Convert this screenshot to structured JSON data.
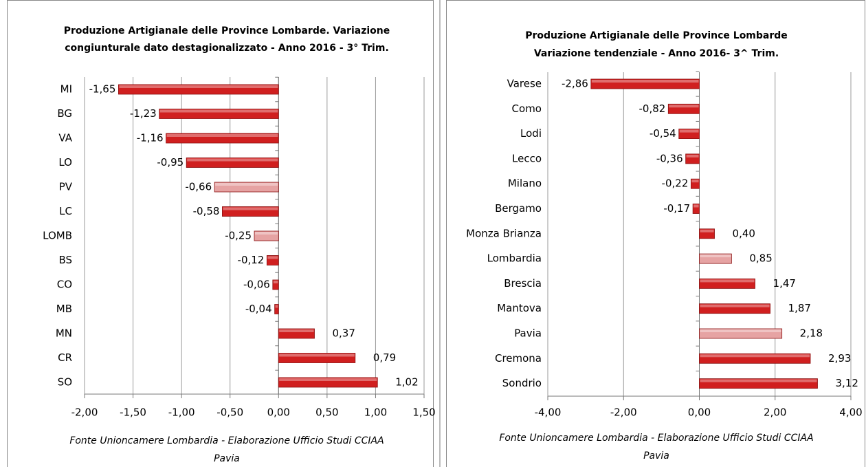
{
  "chart_data": [
    {
      "type": "bar",
      "orientation": "horizontal",
      "title": [
        "Produzione Artigianale delle Province Lombarde. Variazione",
        "congiunturale dato destagionalizzato - Anno 2016 - 3° Trim."
      ],
      "categories": [
        "MI",
        "BG",
        "VA",
        "LO",
        "PV",
        "LC",
        "LOMB",
        "BS",
        "CO",
        "MB",
        "MN",
        "CR",
        "SO"
      ],
      "values": [
        -1.65,
        -1.23,
        -1.16,
        -0.95,
        -0.66,
        -0.58,
        -0.25,
        -0.12,
        -0.06,
        -0.04,
        0.37,
        0.79,
        1.02
      ],
      "value_labels": [
        "-1,65",
        "-1,23",
        "-1,16",
        "-0,95",
        "-0,66",
        "-0,58",
        "-0,25",
        "-0,12",
        "-0,06",
        "-0,04",
        "0,37",
        "0,79",
        "1,02"
      ],
      "colors": [
        "#d01f1f",
        "#d01f1f",
        "#d01f1f",
        "#d01f1f",
        "#e6a3a3",
        "#d01f1f",
        "#e6a3a3",
        "#d01f1f",
        "#d01f1f",
        "#d01f1f",
        "#d01f1f",
        "#d01f1f",
        "#d01f1f"
      ],
      "xlim": [
        -2,
        1.5
      ],
      "xticks": [
        {
          "value": -2,
          "label": "-2,00"
        },
        {
          "value": -1.5,
          "label": "-1,50"
        },
        {
          "value": -1,
          "label": "-1,00"
        },
        {
          "value": -0.5,
          "label": "-0,50"
        },
        {
          "value": 0,
          "label": "0,00"
        },
        {
          "value": 0.5,
          "label": "0,50"
        },
        {
          "value": 1,
          "label": "1,00"
        },
        {
          "value": 1.5,
          "label": "1,50"
        }
      ],
      "grid": true,
      "source": [
        "Fonte Unioncamere Lombardia - Elaborazione Ufficio Studi CCIAA",
        "Pavia"
      ]
    },
    {
      "type": "bar",
      "orientation": "horizontal",
      "title": [
        "Produzione Artigianale delle Province Lombarde",
        "Variazione tendenziale - Anno 2016- 3^ Trim."
      ],
      "categories": [
        "Varese",
        "Como",
        "Lodi",
        "Lecco",
        "Milano",
        "Bergamo",
        "Monza Brianza",
        "Lombardia",
        "Brescia",
        "Mantova",
        "Pavia",
        "Cremona",
        "Sondrio"
      ],
      "values": [
        -2.86,
        -0.82,
        -0.54,
        -0.36,
        -0.22,
        -0.17,
        0.4,
        0.85,
        1.47,
        1.87,
        2.18,
        2.93,
        3.12
      ],
      "value_labels": [
        "-2,86",
        "-0,82",
        "-0,54",
        "-0,36",
        "-0,22",
        "-0,17",
        "0,40",
        "0,85",
        "1,47",
        "1,87",
        "2,18",
        "2,93",
        "3,12"
      ],
      "colors": [
        "#d01f1f",
        "#d01f1f",
        "#d01f1f",
        "#d01f1f",
        "#d01f1f",
        "#d01f1f",
        "#d01f1f",
        "#e6a3a3",
        "#d01f1f",
        "#d01f1f",
        "#e6a3a3",
        "#d01f1f",
        "#d01f1f"
      ],
      "xlim": [
        -4,
        4
      ],
      "xticks": [
        {
          "value": -4,
          "label": "-4,00"
        },
        {
          "value": -2,
          "label": "-2,00"
        },
        {
          "value": 0,
          "label": "0,00"
        },
        {
          "value": 2,
          "label": "2,00"
        },
        {
          "value": 4,
          "label": "4,00"
        }
      ],
      "grid": true,
      "source": [
        "Fonte Unioncamere Lombardia - Elaborazione Ufficio Studi CCIAA",
        "Pavia"
      ]
    }
  ]
}
